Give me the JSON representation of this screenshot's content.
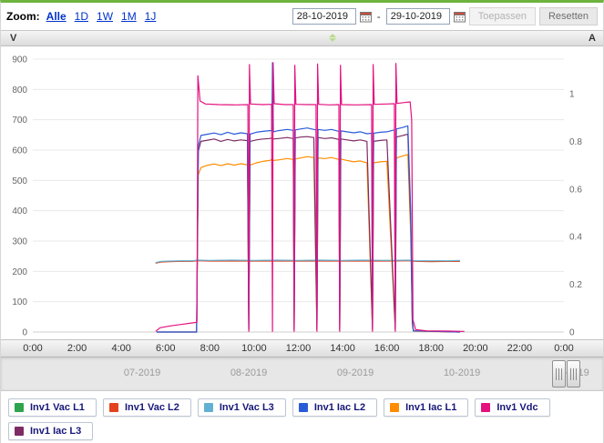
{
  "colors": {
    "top_border": "#6db33f",
    "link_blue": "#0033cc"
  },
  "toolbar": {
    "zoom_label": "Zoom:",
    "zoom_options": [
      "Alle",
      "1D",
      "1W",
      "1M",
      "1J"
    ],
    "date_from": "28-10-2019",
    "date_to": "29-10-2019",
    "separator": "-",
    "apply_label": "Toepassen",
    "reset_label": "Resetten"
  },
  "icons": {
    "calendar": "calendar-icon",
    "navigator_grip": "grip-icon",
    "sort": "sort-arrow-icon"
  },
  "navigator": {
    "months": [
      "07-2019",
      "08-2019",
      "09-2019",
      "10-2019",
      "11-2019"
    ]
  },
  "legend": {
    "items": [
      "Inv1 Vac L1",
      "Inv1 Vac L2",
      "Inv1 Vac L3",
      "Inv1 Iac L2",
      "Inv1 Iac L1",
      "Inv1 Vdc",
      "Inv1 Iac L3"
    ]
  },
  "chart_data": {
    "type": "line",
    "x_unit": "hours",
    "x_range": [
      0,
      24
    ],
    "x_ticks": [
      "0:00",
      "2:00",
      "4:00",
      "6:00",
      "8:00",
      "10:00",
      "12:00",
      "14:00",
      "16:00",
      "18:00",
      "20:00",
      "22:00",
      "0:00"
    ],
    "y_left": {
      "title": "V",
      "min": 0,
      "max": 900,
      "ticks": [
        0,
        100,
        200,
        300,
        400,
        500,
        600,
        700,
        800,
        900
      ]
    },
    "y_right": {
      "title": "A",
      "min": 0,
      "max": 1.2,
      "ticks": [
        0,
        0.2,
        0.4,
        0.6,
        0.8,
        1
      ]
    },
    "grid": "horizontal",
    "legend_position": "bottom",
    "series": [
      {
        "name": "Inv1 Vac L1",
        "color": "#2ea44f",
        "axis": "V",
        "points": [
          [
            5.55,
            228
          ],
          [
            5.8,
            232
          ],
          [
            6.2,
            233
          ],
          [
            6.7,
            234
          ],
          [
            7.2,
            234
          ],
          [
            7.45,
            236
          ],
          [
            8,
            235
          ],
          [
            8.5,
            236
          ],
          [
            9,
            235
          ],
          [
            9.5,
            236
          ],
          [
            10,
            235
          ],
          [
            10.5,
            236
          ],
          [
            11,
            235
          ],
          [
            11.5,
            236
          ],
          [
            12,
            235
          ],
          [
            12.5,
            236
          ],
          [
            13,
            235
          ],
          [
            13.5,
            236
          ],
          [
            14,
            235
          ],
          [
            14.5,
            235
          ],
          [
            15,
            236
          ],
          [
            15.5,
            235
          ],
          [
            16,
            236
          ],
          [
            16.5,
            235
          ],
          [
            17,
            236
          ],
          [
            17.3,
            234
          ],
          [
            17.8,
            233
          ],
          [
            18.3,
            234
          ],
          [
            18.8,
            233
          ],
          [
            19.3,
            234
          ]
        ]
      },
      {
        "name": "Inv1 Vac L2",
        "color": "#e2431e",
        "axis": "V",
        "points": [
          [
            5.55,
            227
          ],
          [
            5.8,
            231
          ],
          [
            6.2,
            232
          ],
          [
            6.7,
            233
          ],
          [
            7.2,
            233
          ],
          [
            7.45,
            235
          ],
          [
            8,
            234
          ],
          [
            9,
            234
          ],
          [
            10,
            234
          ],
          [
            11,
            234
          ],
          [
            12,
            234
          ],
          [
            13,
            234
          ],
          [
            14,
            234
          ],
          [
            15,
            234
          ],
          [
            16,
            234
          ],
          [
            17,
            235
          ],
          [
            17.3,
            233
          ],
          [
            18,
            232
          ],
          [
            18.8,
            233
          ],
          [
            19.3,
            233
          ]
        ]
      },
      {
        "name": "Inv1 Vac L3",
        "color": "#63b1d2",
        "axis": "V",
        "points": [
          [
            5.55,
            229
          ],
          [
            5.8,
            233
          ],
          [
            6.2,
            234
          ],
          [
            6.7,
            235
          ],
          [
            7.2,
            235
          ],
          [
            7.45,
            237
          ],
          [
            8,
            236
          ],
          [
            9,
            237
          ],
          [
            10,
            236
          ],
          [
            11,
            237
          ],
          [
            12,
            236
          ],
          [
            13,
            237
          ],
          [
            14,
            236
          ],
          [
            15,
            237
          ],
          [
            16,
            236
          ],
          [
            17,
            237
          ],
          [
            17.3,
            235
          ],
          [
            18,
            235
          ],
          [
            18.8,
            235
          ],
          [
            19.3,
            236
          ]
        ]
      },
      {
        "name": "Inv1 Iac L1",
        "color": "#ff8c00",
        "axis": "A",
        "points": [
          [
            5.6,
            0
          ],
          [
            7.4,
            0
          ],
          [
            7.48,
            0.66
          ],
          [
            7.6,
            0.69
          ],
          [
            7.9,
            0.7
          ],
          [
            8.2,
            0.705
          ],
          [
            8.5,
            0.698
          ],
          [
            8.8,
            0.706
          ],
          [
            9.1,
            0.7
          ],
          [
            9.4,
            0.706
          ],
          [
            9.7,
            0.702
          ],
          [
            9.76,
            0.01
          ],
          [
            9.82,
            0.7
          ],
          [
            10.1,
            0.71
          ],
          [
            10.4,
            0.716
          ],
          [
            10.7,
            0.72
          ],
          [
            10.83,
            0.725
          ],
          [
            10.87,
            0.72
          ],
          [
            11.1,
            0.722
          ],
          [
            11.5,
            0.728
          ],
          [
            11.77,
            0.724
          ],
          [
            11.81,
            0.01
          ],
          [
            11.86,
            0.726
          ],
          [
            12.1,
            0.73
          ],
          [
            12.4,
            0.736
          ],
          [
            12.7,
            0.732
          ],
          [
            12.84,
            0.01
          ],
          [
            12.89,
            0.73
          ],
          [
            13.2,
            0.728
          ],
          [
            13.5,
            0.732
          ],
          [
            13.83,
            0.724
          ],
          [
            13.87,
            0.01
          ],
          [
            13.92,
            0.726
          ],
          [
            14.2,
            0.72
          ],
          [
            14.5,
            0.714
          ],
          [
            14.8,
            0.718
          ],
          [
            15.1,
            0.71
          ],
          [
            15.35,
            0.01
          ],
          [
            15.4,
            0.71
          ],
          [
            15.7,
            0.714
          ],
          [
            16,
            0.716
          ],
          [
            16.38,
            0.01
          ],
          [
            16.43,
            0.73
          ],
          [
            16.7,
            0.738
          ],
          [
            16.95,
            0.745
          ],
          [
            17.08,
            0.4
          ],
          [
            17.15,
            0.03
          ],
          [
            17.2,
            0.004
          ],
          [
            19.3,
            0
          ]
        ]
      },
      {
        "name": "Inv1 Iac L3",
        "color": "#7e2b63",
        "axis": "A",
        "points": [
          [
            5.6,
            0
          ],
          [
            7.4,
            0
          ],
          [
            7.48,
            0.76
          ],
          [
            7.6,
            0.8
          ],
          [
            7.9,
            0.805
          ],
          [
            8.2,
            0.81
          ],
          [
            8.5,
            0.8
          ],
          [
            8.8,
            0.808
          ],
          [
            9.1,
            0.802
          ],
          [
            9.4,
            0.806
          ],
          [
            9.7,
            0.803
          ],
          [
            9.76,
            0.01
          ],
          [
            9.82,
            0.8
          ],
          [
            10.1,
            0.806
          ],
          [
            10.4,
            0.81
          ],
          [
            10.7,
            0.812
          ],
          [
            10.83,
            0.815
          ],
          [
            10.87,
            0.81
          ],
          [
            11.1,
            0.812
          ],
          [
            11.5,
            0.816
          ],
          [
            11.77,
            0.812
          ],
          [
            11.81,
            0.01
          ],
          [
            11.86,
            0.814
          ],
          [
            12.1,
            0.818
          ],
          [
            12.4,
            0.82
          ],
          [
            12.7,
            0.816
          ],
          [
            12.84,
            0.01
          ],
          [
            12.89,
            0.816
          ],
          [
            13.2,
            0.812
          ],
          [
            13.5,
            0.815
          ],
          [
            13.83,
            0.808
          ],
          [
            13.87,
            0.01
          ],
          [
            13.92,
            0.81
          ],
          [
            14.2,
            0.806
          ],
          [
            14.5,
            0.802
          ],
          [
            14.8,
            0.806
          ],
          [
            15.1,
            0.8
          ],
          [
            15.35,
            0.01
          ],
          [
            15.4,
            0.8
          ],
          [
            15.7,
            0.804
          ],
          [
            16,
            0.806
          ],
          [
            16.38,
            0.01
          ],
          [
            16.43,
            0.818
          ],
          [
            16.7,
            0.824
          ],
          [
            16.95,
            0.83
          ],
          [
            17.08,
            0.45
          ],
          [
            17.15,
            0.04
          ],
          [
            17.2,
            0.005
          ],
          [
            19.3,
            0
          ]
        ]
      },
      {
        "name": "Inv1 Iac L2",
        "color": "#2a5bd7",
        "axis": "A",
        "points": [
          [
            5.6,
            0
          ],
          [
            7.4,
            0
          ],
          [
            7.48,
            0.78
          ],
          [
            7.6,
            0.825
          ],
          [
            7.9,
            0.83
          ],
          [
            8.2,
            0.835
          ],
          [
            8.5,
            0.828
          ],
          [
            8.8,
            0.838
          ],
          [
            9.1,
            0.83
          ],
          [
            9.4,
            0.836
          ],
          [
            9.7,
            0.832
          ],
          [
            9.76,
            0.01
          ],
          [
            9.82,
            0.83
          ],
          [
            10.1,
            0.838
          ],
          [
            10.4,
            0.842
          ],
          [
            10.7,
            0.845
          ],
          [
            10.8,
            0.845
          ],
          [
            10.83,
            1.13
          ],
          [
            10.87,
            0.84
          ],
          [
            11.1,
            0.845
          ],
          [
            11.5,
            0.85
          ],
          [
            11.77,
            0.846
          ],
          [
            11.81,
            0.01
          ],
          [
            11.86,
            0.848
          ],
          [
            12.1,
            0.852
          ],
          [
            12.4,
            0.856
          ],
          [
            12.7,
            0.85
          ],
          [
            12.8,
            0.848
          ],
          [
            12.84,
            0.01
          ],
          [
            12.89,
            0.85
          ],
          [
            13.2,
            0.846
          ],
          [
            13.5,
            0.85
          ],
          [
            13.83,
            0.842
          ],
          [
            13.87,
            0.01
          ],
          [
            13.92,
            0.844
          ],
          [
            14.2,
            0.84
          ],
          [
            14.5,
            0.836
          ],
          [
            14.8,
            0.84
          ],
          [
            15.1,
            0.832
          ],
          [
            15.31,
            0.834
          ],
          [
            15.35,
            0.01
          ],
          [
            15.4,
            0.834
          ],
          [
            15.7,
            0.838
          ],
          [
            16,
            0.84
          ],
          [
            16.34,
            0.848
          ],
          [
            16.38,
            0.01
          ],
          [
            16.43,
            0.852
          ],
          [
            16.7,
            0.858
          ],
          [
            16.95,
            0.865
          ],
          [
            17.08,
            0.5
          ],
          [
            17.15,
            0.05
          ],
          [
            17.2,
            0.005
          ],
          [
            19.3,
            0
          ]
        ]
      },
      {
        "name": "Inv1 Vdc",
        "color": "#e4117f",
        "axis": "V",
        "points": [
          [
            5.55,
            2
          ],
          [
            5.75,
            14
          ],
          [
            6.2,
            20
          ],
          [
            6.7,
            25
          ],
          [
            7.2,
            30
          ],
          [
            7.42,
            32
          ],
          [
            7.46,
            845
          ],
          [
            7.56,
            762
          ],
          [
            7.8,
            752
          ],
          [
            8.4,
            750
          ],
          [
            9.2,
            749
          ],
          [
            9.72,
            750
          ],
          [
            9.76,
            2
          ],
          [
            9.79,
            882
          ],
          [
            9.84,
            752
          ],
          [
            10.4,
            750
          ],
          [
            10.79,
            751
          ],
          [
            10.83,
            2
          ],
          [
            10.86,
            888
          ],
          [
            10.91,
            753
          ],
          [
            11.4,
            750
          ],
          [
            11.77,
            750
          ],
          [
            11.81,
            2
          ],
          [
            11.84,
            880
          ],
          [
            11.89,
            751
          ],
          [
            12.4,
            750
          ],
          [
            12.8,
            750
          ],
          [
            12.84,
            2
          ],
          [
            12.87,
            884
          ],
          [
            12.92,
            751
          ],
          [
            13.4,
            749
          ],
          [
            13.83,
            750
          ],
          [
            13.87,
            2
          ],
          [
            13.9,
            880
          ],
          [
            13.95,
            750
          ],
          [
            14.6,
            749
          ],
          [
            15.31,
            750
          ],
          [
            15.35,
            2
          ],
          [
            15.38,
            882
          ],
          [
            15.43,
            751
          ],
          [
            16,
            752
          ],
          [
            16.34,
            753
          ],
          [
            16.38,
            2
          ],
          [
            16.41,
            886
          ],
          [
            16.46,
            754
          ],
          [
            16.8,
            757
          ],
          [
            17.05,
            759
          ],
          [
            17.12,
            700
          ],
          [
            17.18,
            40
          ],
          [
            17.3,
            8
          ],
          [
            17.8,
            4
          ],
          [
            18.8,
            3
          ],
          [
            19.5,
            2
          ]
        ]
      }
    ]
  }
}
